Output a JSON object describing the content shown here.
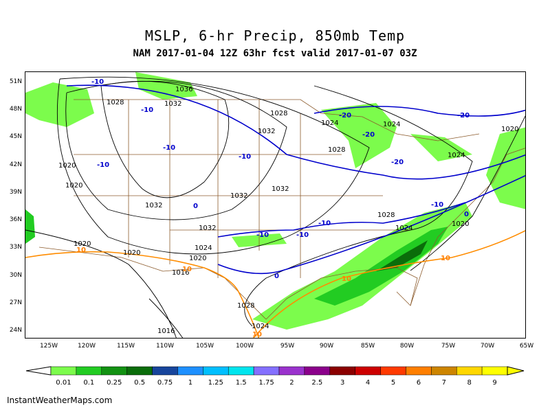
{
  "title": "MSLP, 6-hr Precip, 850mb Temp",
  "subtitle": "NAM 2017-01-04 12Z 63hr fcst valid 2017-01-07 03Z",
  "footer": "InstantWeatherMaps.com",
  "lat_ticks": [
    "51N",
    "48N",
    "45N",
    "42N",
    "39N",
    "36N",
    "33N",
    "30N",
    "27N",
    "24N"
  ],
  "lon_ticks": [
    "125W",
    "120W",
    "115W",
    "110W",
    "105W",
    "100W",
    "95W",
    "90W",
    "85W",
    "80W",
    "75W",
    "70W",
    "65W"
  ],
  "legend": {
    "labels": [
      "0.01",
      "0.1",
      "0.25",
      "0.5",
      "0.75",
      "1",
      "1.25",
      "1.5",
      "1.75",
      "2",
      "2.5",
      "3",
      "4",
      "5",
      "6",
      "7",
      "8",
      "9"
    ],
    "colors": [
      "#7cfc4c",
      "#22cc22",
      "#129212",
      "#0a6d0a",
      "#17459c",
      "#1e90ff",
      "#00bfff",
      "#00e5ee",
      "#8470ff",
      "#9a32cd",
      "#8b008b",
      "#8b0000",
      "#cd0000",
      "#ff3a00",
      "#ff7f00",
      "#cd8500",
      "#ffd700",
      "#ffff00"
    ]
  },
  "isobar_labels": [
    {
      "text": "1036"
    },
    {
      "text": "1028"
    },
    {
      "text": "1032"
    },
    {
      "text": "1028"
    },
    {
      "text": "1032"
    },
    {
      "text": "1024"
    },
    {
      "text": "1028"
    },
    {
      "text": "1032"
    },
    {
      "text": "1032"
    },
    {
      "text": "1028"
    },
    {
      "text": "1024"
    },
    {
      "text": "1020"
    },
    {
      "text": "1024"
    },
    {
      "text": "1020"
    },
    {
      "text": "1020"
    },
    {
      "text": "1020"
    },
    {
      "text": "1016"
    },
    {
      "text": "1028"
    },
    {
      "text": "1024"
    },
    {
      "text": "1024"
    },
    {
      "text": "1020"
    },
    {
      "text": "1024"
    },
    {
      "text": "1020"
    },
    {
      "text": "1016"
    },
    {
      "text": "1020"
    },
    {
      "text": "1032"
    },
    {
      "text": "1032"
    }
  ],
  "temp_labels_blue": [
    {
      "text": "-10"
    },
    {
      "text": "-10"
    },
    {
      "text": "-10"
    },
    {
      "text": "-10"
    },
    {
      "text": "-10"
    },
    {
      "text": "-20"
    },
    {
      "text": "-20"
    },
    {
      "text": "-20"
    },
    {
      "text": "-20"
    },
    {
      "text": "-10"
    },
    {
      "text": "-10"
    },
    {
      "text": "-10"
    },
    {
      "text": "-10"
    },
    {
      "text": "0"
    },
    {
      "text": "0"
    },
    {
      "text": "0"
    }
  ],
  "temp_labels_orange": [
    {
      "text": "10"
    },
    {
      "text": "10"
    },
    {
      "text": "10"
    },
    {
      "text": "10"
    },
    {
      "text": "10"
    }
  ]
}
